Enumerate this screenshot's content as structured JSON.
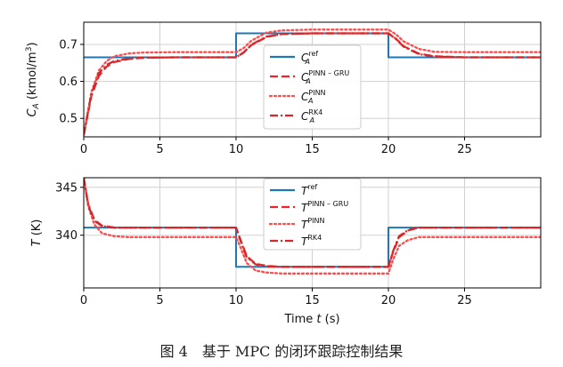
{
  "chart_data": [
    {
      "type": "line",
      "ylabel": "C_A (kmol/m³)",
      "ylabel_parts": {
        "sym": "C",
        "sub": "A",
        "unit": " (kmol/m",
        "sup": "3",
        "close": ")"
      },
      "xlim": [
        0,
        30
      ],
      "ylim": [
        0.45,
        0.76
      ],
      "xticks": [
        0,
        5,
        10,
        15,
        20,
        25
      ],
      "yticks": [
        0.5,
        0.6,
        0.7
      ],
      "ytick_labels": [
        "0.5",
        "0.6",
        "0.7"
      ],
      "grid": true,
      "legend": "center",
      "series": [
        {
          "name": "ref",
          "label_sym": "C",
          "label_sub": "A",
          "label_sup": "ref",
          "color": "#1f77b4",
          "style": "solid",
          "x": [
            0,
            10,
            10,
            20,
            20,
            30
          ],
          "y": [
            0.665,
            0.665,
            0.73,
            0.73,
            0.665,
            0.665
          ]
        },
        {
          "name": "PINN-GRU",
          "label_sym": "C",
          "label_sub": "A",
          "label_sup": "PINN – GRU",
          "color": "#e8262b",
          "style": "dashed",
          "x": [
            0,
            0.5,
            1,
            1.5,
            2,
            3,
            4,
            6,
            10,
            10.5,
            11,
            12,
            13,
            15,
            20,
            20.5,
            21,
            22,
            23,
            25,
            30
          ],
          "y": [
            0.455,
            0.56,
            0.615,
            0.64,
            0.652,
            0.661,
            0.664,
            0.665,
            0.665,
            0.678,
            0.698,
            0.72,
            0.728,
            0.73,
            0.73,
            0.715,
            0.695,
            0.675,
            0.668,
            0.665,
            0.665
          ]
        },
        {
          "name": "PINN",
          "label_sym": "C",
          "label_sub": "A",
          "label_sup": "PINN",
          "color": "#ff4b4b",
          "style": "dotted",
          "x": [
            0,
            0.5,
            1,
            1.5,
            2,
            3,
            4,
            6,
            10,
            10.5,
            11,
            12,
            13,
            15,
            20,
            20.5,
            21,
            22,
            23,
            25,
            30
          ],
          "y": [
            0.455,
            0.57,
            0.63,
            0.655,
            0.668,
            0.676,
            0.678,
            0.679,
            0.679,
            0.69,
            0.71,
            0.732,
            0.738,
            0.74,
            0.74,
            0.727,
            0.708,
            0.688,
            0.68,
            0.679,
            0.679
          ]
        },
        {
          "name": "RK4",
          "label_sym": "C",
          "label_sub": "A",
          "label_sup": "RK4",
          "color": "#d62728",
          "style": "dashdot",
          "x": [
            0,
            0.5,
            1,
            1.5,
            2,
            3,
            4,
            6,
            10,
            10.5,
            11,
            12,
            13,
            15,
            20,
            20.5,
            21,
            22,
            23,
            25,
            30
          ],
          "y": [
            0.455,
            0.565,
            0.622,
            0.645,
            0.655,
            0.662,
            0.664,
            0.665,
            0.665,
            0.678,
            0.699,
            0.721,
            0.728,
            0.73,
            0.73,
            0.714,
            0.694,
            0.674,
            0.667,
            0.665,
            0.665
          ]
        }
      ]
    },
    {
      "type": "line",
      "xlabel": "Time t (s)",
      "xlabel_parts": {
        "text": "Time ",
        "italic": "t",
        "unit": " (s)"
      },
      "ylabel": "T (K)",
      "ylabel_parts": {
        "sym": "T",
        "unit": " (K)"
      },
      "xlim": [
        0,
        30
      ],
      "ylim": [
        334.5,
        346
      ],
      "xticks": [
        0,
        5,
        10,
        15,
        20,
        25
      ],
      "yticks": [
        340,
        345
      ],
      "ytick_labels": [
        "340",
        "345"
      ],
      "grid": true,
      "legend": "upper center",
      "series": [
        {
          "name": "ref",
          "label_sym": "T",
          "label_sup": "ref",
          "color": "#1f77b4",
          "style": "solid",
          "x": [
            0,
            10,
            10,
            20,
            20,
            30
          ],
          "y": [
            340.8,
            340.8,
            336.7,
            336.7,
            340.8,
            340.8
          ]
        },
        {
          "name": "PINN-GRU",
          "label_sym": "T",
          "label_sup": "PINN – GRU",
          "color": "#e8262b",
          "style": "dashed",
          "x": [
            0,
            0.3,
            0.7,
            1.2,
            2,
            3,
            10,
            10.3,
            10.7,
            11.3,
            12,
            13,
            20,
            20.3,
            20.7,
            21.3,
            22,
            23,
            30
          ],
          "y": [
            346,
            343.2,
            341.6,
            341,
            340.8,
            340.8,
            340.8,
            339.5,
            337.8,
            337,
            336.8,
            336.7,
            336.7,
            338.2,
            339.8,
            340.5,
            340.8,
            340.8,
            340.8
          ]
        },
        {
          "name": "PINN",
          "label_sym": "T",
          "label_sup": "PINN",
          "color": "#ff4b4b",
          "style": "dotted",
          "x": [
            0,
            0.3,
            0.7,
            1.2,
            2,
            3,
            10,
            10.3,
            10.7,
            11.3,
            12,
            13,
            20,
            20.3,
            20.7,
            21.3,
            22,
            23,
            30
          ],
          "y": [
            346,
            343,
            341.1,
            340.2,
            339.9,
            339.8,
            339.8,
            338.7,
            337.1,
            336.3,
            336.1,
            336.0,
            336.0,
            337.4,
            338.9,
            339.5,
            339.8,
            339.8,
            339.8
          ]
        },
        {
          "name": "RK4",
          "label_sym": "T",
          "label_sup": "RK4",
          "color": "#d62728",
          "style": "dashdot",
          "x": [
            0,
            0.3,
            0.7,
            1.2,
            2,
            3,
            10,
            10.3,
            10.7,
            11.3,
            12,
            13,
            20,
            20.3,
            20.7,
            21.3,
            22,
            23,
            30
          ],
          "y": [
            346,
            343.1,
            341.5,
            340.95,
            340.8,
            340.8,
            340.8,
            339.4,
            337.7,
            336.95,
            336.75,
            336.7,
            336.7,
            338.3,
            339.9,
            340.55,
            340.8,
            340.8,
            340.8
          ]
        }
      ]
    }
  ],
  "caption": "图 4　基于 MPC 的闭环跟踪控制结果"
}
